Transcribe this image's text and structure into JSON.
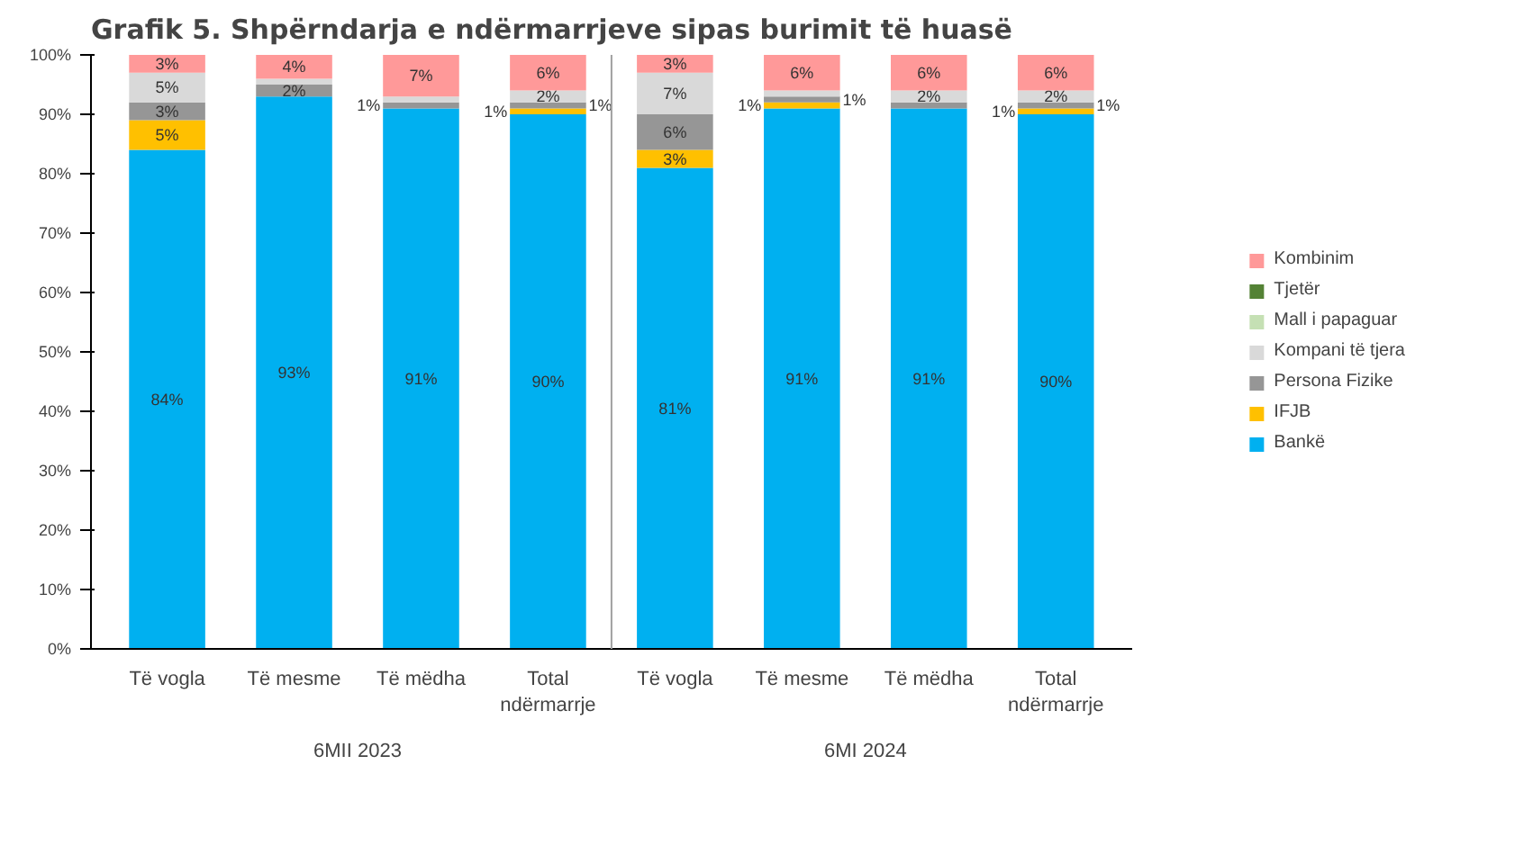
{
  "chart_data": {
    "type": "bar",
    "stacked": true,
    "title": "Grafik 5. Shpërndarja e ndërmarrjeve sipas burimit të huasë",
    "categories": [
      "Të vogla",
      "Të mesme",
      "Të mëdha",
      "Total ndërmarrje",
      "Të vogla",
      "Të mesme",
      "Të mëdha",
      "Total ndërmarrje"
    ],
    "annotations": [
      "6MII 2023",
      "6MI 2024"
    ],
    "ylim": [
      0,
      100
    ],
    "yticks": [
      {
        "value": 0,
        "label": "0%"
      },
      {
        "value": 10,
        "label": "10%"
      },
      {
        "value": 20,
        "label": "20%"
      },
      {
        "value": 30,
        "label": "30%"
      },
      {
        "value": 40,
        "label": "40%"
      },
      {
        "value": 50,
        "label": "50%"
      },
      {
        "value": 60,
        "label": "60%"
      },
      {
        "value": 70,
        "label": "70%"
      },
      {
        "value": 80,
        "label": "80%"
      },
      {
        "value": 90,
        "label": "90%"
      },
      {
        "value": 100,
        "label": "100%"
      }
    ],
    "grid": false,
    "legend": "right",
    "series": [
      {
        "name": "Bankë",
        "color": "#00b0f0",
        "values": [
          84,
          93,
          91,
          90,
          81,
          91,
          91,
          90
        ],
        "value_labels": [
          "84%",
          "93%",
          "91%",
          "90%",
          "81%",
          "91%",
          "91%",
          "90%"
        ]
      },
      {
        "name": "IFJB",
        "color": "#ffc000",
        "values": [
          5,
          0,
          0,
          1,
          3,
          1,
          0,
          1
        ],
        "value_labels": [
          "5%",
          null,
          null,
          "1%",
          "3%",
          "1%",
          null,
          "1%"
        ]
      },
      {
        "name": "Persona Fizike",
        "color": "#969696",
        "values": [
          3,
          2,
          1,
          1,
          6,
          1,
          1,
          1
        ],
        "value_labels": [
          "3%",
          "2%",
          "1%",
          "1%",
          "6%",
          "1%",
          null,
          "1%"
        ]
      },
      {
        "name": "Kompani të tjera",
        "color": "#d9d9d9",
        "values": [
          5,
          1,
          1,
          2,
          7,
          1,
          2,
          2
        ],
        "value_labels": [
          "5%",
          null,
          null,
          "2%",
          "7%",
          null,
          "2%",
          "2%"
        ]
      },
      {
        "name": "Mall i papaguar",
        "color": "#c5e0b4",
        "values": [
          0,
          0,
          0,
          0,
          0,
          0,
          0,
          0
        ]
      },
      {
        "name": "Tjetër",
        "color": "#548235",
        "values": [
          0,
          0,
          0,
          0,
          0,
          0,
          0,
          0
        ]
      },
      {
        "name": "Kombinim",
        "color": "#ff9999",
        "values": [
          3,
          4,
          7,
          6,
          3,
          6,
          6,
          6
        ],
        "value_labels": [
          "3%",
          "4%",
          "7%",
          "6%",
          "3%",
          "6%",
          "6%",
          "6%"
        ]
      }
    ]
  }
}
